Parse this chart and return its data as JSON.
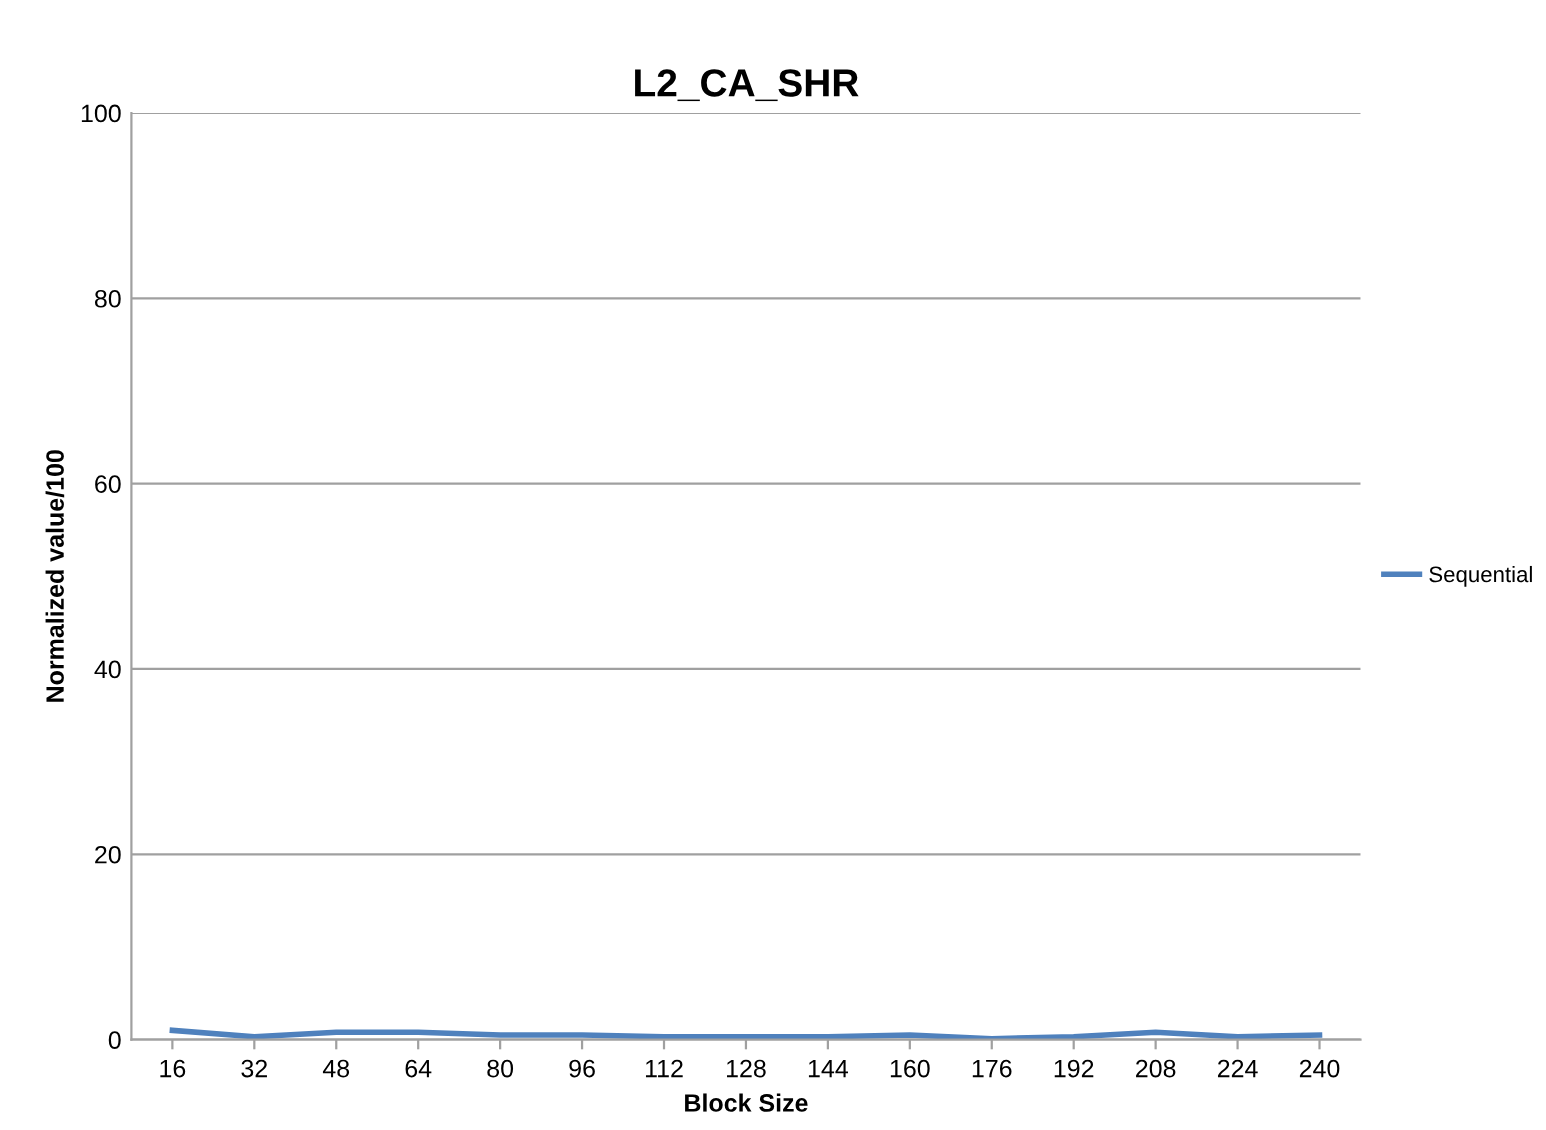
{
  "chart_data": {
    "type": "line",
    "title": "L2_CA_SHR",
    "xlabel": "Block Size",
    "ylabel": "Normalized value/100",
    "categories": [
      "16",
      "32",
      "48",
      "64",
      "80",
      "96",
      "112",
      "128",
      "144",
      "160",
      "176",
      "192",
      "208",
      "224",
      "240"
    ],
    "series": [
      {
        "name": "Sequential",
        "color": "#4f81bd",
        "values": [
          1.0,
          0.3,
          0.8,
          0.8,
          0.5,
          0.5,
          0.3,
          0.3,
          0.3,
          0.5,
          0.1,
          0.3,
          0.8,
          0.3,
          0.5
        ]
      }
    ],
    "ylim": [
      0,
      100
    ],
    "yticks": [
      0,
      20,
      40,
      60,
      80,
      100
    ],
    "grid": "y",
    "legend": "right"
  }
}
